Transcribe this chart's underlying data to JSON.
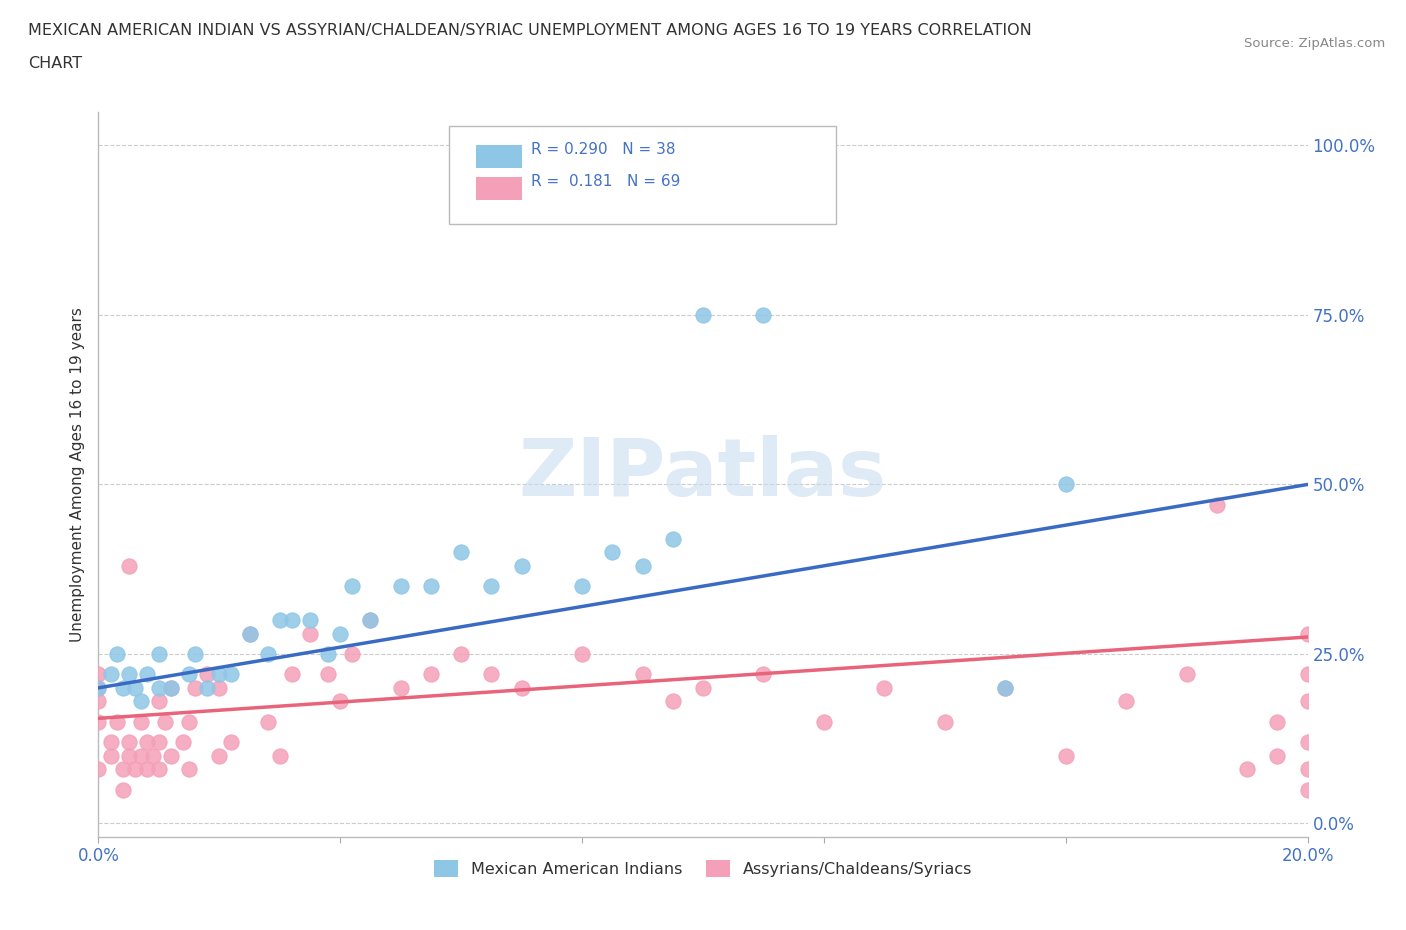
{
  "title_line1": "MEXICAN AMERICAN INDIAN VS ASSYRIAN/CHALDEAN/SYRIAC UNEMPLOYMENT AMONG AGES 16 TO 19 YEARS CORRELATION",
  "title_line2": "CHART",
  "source": "Source: ZipAtlas.com",
  "ylabel": "Unemployment Among Ages 16 to 19 years",
  "xlim": [
    0.0,
    0.2
  ],
  "ylim": [
    -0.02,
    1.05
  ],
  "ytick_labels": [
    "0.0%",
    "25.0%",
    "50.0%",
    "75.0%",
    "100.0%"
  ],
  "ytick_values": [
    0.0,
    0.25,
    0.5,
    0.75,
    1.0
  ],
  "xtick_labels": [
    "0.0%",
    "",
    "",
    "",
    "",
    "20.0%"
  ],
  "xtick_values": [
    0.0,
    0.04,
    0.08,
    0.12,
    0.16,
    0.2
  ],
  "blue_color": "#8EC6E6",
  "pink_color": "#F4A0B8",
  "blue_line_color": "#3A6BC4",
  "pink_line_color": "#E8647A",
  "legend_R_blue": "0.290",
  "legend_N_blue": "38",
  "legend_R_pink": "0.181",
  "legend_N_pink": "69",
  "legend_label_blue": "Mexican American Indians",
  "legend_label_pink": "Assyrians/Chaldeans/Syriacs",
  "tick_color": "#4472C4",
  "text_color": "#333333",
  "watermark_text": "ZIPatlas",
  "background": "#FFFFFF",
  "blue_scatter_x": [
    0.0,
    0.002,
    0.003,
    0.004,
    0.005,
    0.006,
    0.007,
    0.008,
    0.01,
    0.01,
    0.012,
    0.015,
    0.016,
    0.018,
    0.02,
    0.022,
    0.025,
    0.028,
    0.03,
    0.032,
    0.035,
    0.038,
    0.04,
    0.042,
    0.045,
    0.05,
    0.055,
    0.06,
    0.065,
    0.07,
    0.08,
    0.085,
    0.09,
    0.095,
    0.1,
    0.11,
    0.15,
    0.16
  ],
  "blue_scatter_y": [
    0.2,
    0.22,
    0.25,
    0.2,
    0.22,
    0.2,
    0.18,
    0.22,
    0.2,
    0.25,
    0.2,
    0.22,
    0.25,
    0.2,
    0.22,
    0.22,
    0.28,
    0.25,
    0.3,
    0.3,
    0.3,
    0.25,
    0.28,
    0.35,
    0.3,
    0.35,
    0.35,
    0.4,
    0.35,
    0.38,
    0.35,
    0.4,
    0.38,
    0.42,
    0.75,
    0.75,
    0.2,
    0.5
  ],
  "pink_scatter_x": [
    0.0,
    0.0,
    0.0,
    0.0,
    0.0,
    0.002,
    0.002,
    0.003,
    0.004,
    0.004,
    0.005,
    0.005,
    0.005,
    0.006,
    0.007,
    0.007,
    0.008,
    0.008,
    0.009,
    0.01,
    0.01,
    0.01,
    0.011,
    0.012,
    0.012,
    0.014,
    0.015,
    0.015,
    0.016,
    0.018,
    0.02,
    0.02,
    0.022,
    0.025,
    0.028,
    0.03,
    0.032,
    0.035,
    0.038,
    0.04,
    0.042,
    0.045,
    0.05,
    0.055,
    0.06,
    0.065,
    0.07,
    0.08,
    0.09,
    0.095,
    0.1,
    0.11,
    0.12,
    0.13,
    0.14,
    0.15,
    0.16,
    0.17,
    0.18,
    0.185,
    0.19,
    0.195,
    0.195,
    0.2,
    0.2,
    0.2,
    0.2,
    0.2,
    0.2
  ],
  "pink_scatter_y": [
    0.15,
    0.18,
    0.2,
    0.22,
    0.08,
    0.1,
    0.12,
    0.15,
    0.05,
    0.08,
    0.1,
    0.12,
    0.38,
    0.08,
    0.1,
    0.15,
    0.08,
    0.12,
    0.1,
    0.08,
    0.12,
    0.18,
    0.15,
    0.1,
    0.2,
    0.12,
    0.08,
    0.15,
    0.2,
    0.22,
    0.1,
    0.2,
    0.12,
    0.28,
    0.15,
    0.1,
    0.22,
    0.28,
    0.22,
    0.18,
    0.25,
    0.3,
    0.2,
    0.22,
    0.25,
    0.22,
    0.2,
    0.25,
    0.22,
    0.18,
    0.2,
    0.22,
    0.15,
    0.2,
    0.15,
    0.2,
    0.1,
    0.18,
    0.22,
    0.47,
    0.08,
    0.1,
    0.15,
    0.05,
    0.08,
    0.12,
    0.18,
    0.22,
    0.28
  ]
}
